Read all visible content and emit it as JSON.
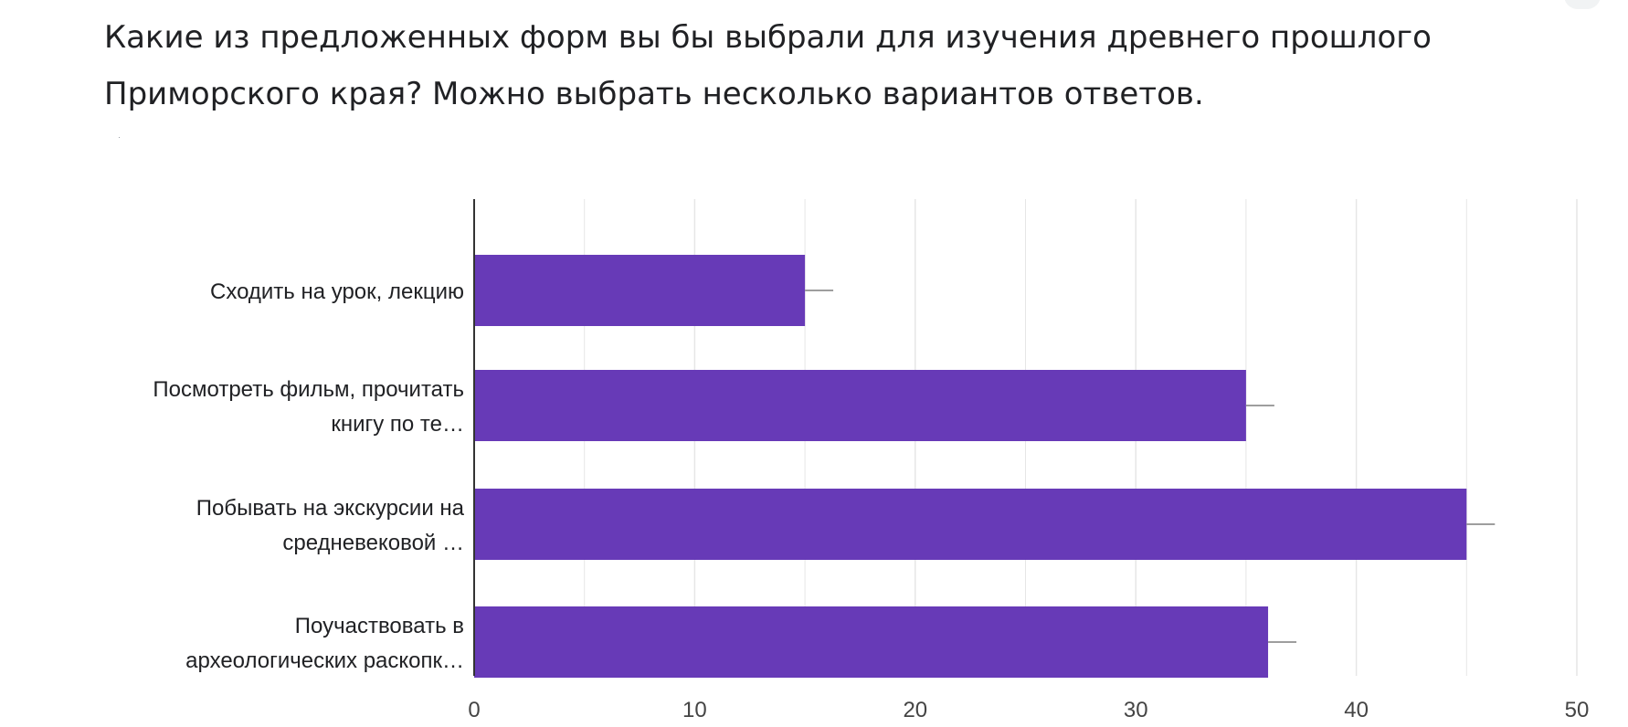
{
  "question": {
    "title": "Какие из предложенных форм вы бы выбрали для изучения древнего прошлого Приморского края? Можно выбрать несколько вариантов ответов."
  },
  "colors": {
    "bar": "#673ab7",
    "grid": "#e6e6e6",
    "axis": "#333333",
    "error": "#9e9e9e"
  },
  "chart_data": {
    "type": "bar",
    "orientation": "horizontal",
    "categories": [
      [
        "Сходить на урок, лекцию"
      ],
      [
        "Посмотреть фильм, прочитать",
        "книгу по те…"
      ],
      [
        "Побывать на экскурсии на",
        "средневековой …"
      ],
      [
        "Поучаствовать в",
        "археологических раскопк…"
      ]
    ],
    "values": [
      15,
      35,
      45,
      36
    ],
    "xlim": [
      0,
      50
    ],
    "xticks": [
      0,
      10,
      20,
      30,
      40,
      50
    ],
    "grid": true,
    "legend": "none"
  }
}
